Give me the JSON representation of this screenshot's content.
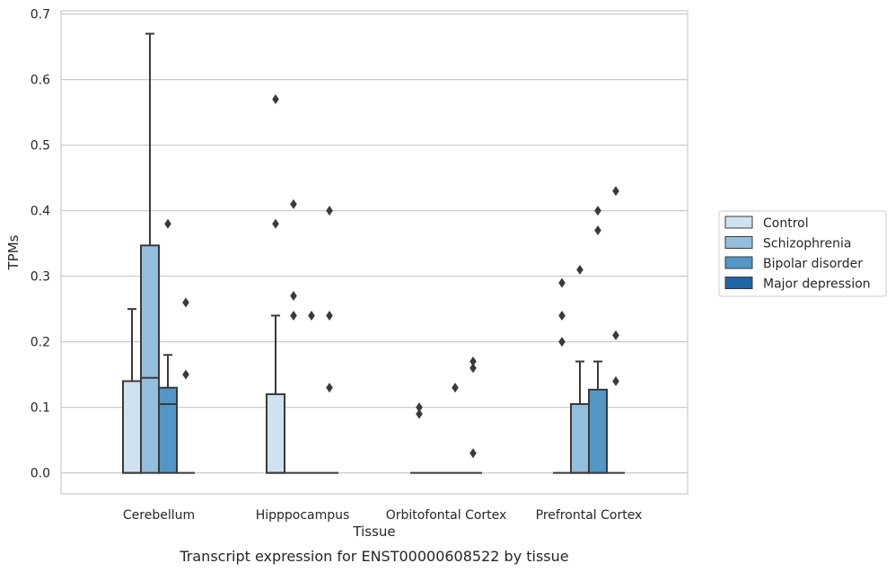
{
  "chart_data": {
    "type": "box",
    "title": "Transcript expression for ENST00000608522 by tissue",
    "xlabel": "Tissue",
    "ylabel": "TPMs",
    "ylim": [
      -0.032,
      0.705
    ],
    "yticks": [
      0.0,
      0.1,
      0.2,
      0.3,
      0.4,
      0.5,
      0.6,
      0.7
    ],
    "ytick_labels": [
      "0.0",
      "0.1",
      "0.2",
      "0.3",
      "0.4",
      "0.5",
      "0.6",
      "0.7"
    ],
    "grid": "horizontal",
    "legend_position": "right",
    "categories": [
      "Cerebellum",
      "Hipppocampus",
      "Orbitofontal Cortex",
      "Prefrontal Cortex"
    ],
    "series": [
      {
        "name": "Control",
        "color": "#d0e1f0",
        "boxes": [
          {
            "q1": 0.0,
            "median": 0.0,
            "q3": 0.14,
            "whisker_low": 0.0,
            "whisker_high": 0.25,
            "outliers": []
          },
          {
            "q1": 0.0,
            "median": 0.0,
            "q3": 0.12,
            "whisker_low": 0.0,
            "whisker_high": 0.24,
            "outliers": [
              0.38,
              0.57
            ]
          },
          {
            "q1": 0.0,
            "median": 0.0,
            "q3": 0.0,
            "whisker_low": 0.0,
            "whisker_high": 0.0,
            "outliers": [
              0.09,
              0.1
            ]
          },
          {
            "q1": 0.0,
            "median": 0.0,
            "q3": 0.0,
            "whisker_low": 0.0,
            "whisker_high": 0.0,
            "outliers": [
              0.2,
              0.24,
              0.29
            ]
          }
        ]
      },
      {
        "name": "Schizophrenia",
        "color": "#93bfdc",
        "boxes": [
          {
            "q1": 0.0,
            "median": 0.145,
            "q3": 0.347,
            "whisker_low": 0.0,
            "whisker_high": 0.67,
            "outliers": []
          },
          {
            "q1": 0.0,
            "median": 0.0,
            "q3": 0.0,
            "whisker_low": 0.0,
            "whisker_high": 0.0,
            "outliers": [
              0.24,
              0.27,
              0.41
            ]
          },
          {
            "q1": 0.0,
            "median": 0.0,
            "q3": 0.0,
            "whisker_low": 0.0,
            "whisker_high": 0.0,
            "outliers": []
          },
          {
            "q1": 0.0,
            "median": 0.0,
            "q3": 0.105,
            "whisker_low": 0.0,
            "whisker_high": 0.17,
            "outliers": [
              0.31
            ]
          }
        ]
      },
      {
        "name": "Bipolar disorder",
        "color": "#5297c6",
        "boxes": [
          {
            "q1": 0.0,
            "median": 0.105,
            "q3": 0.13,
            "whisker_low": 0.0,
            "whisker_high": 0.18,
            "outliers": [
              0.38
            ]
          },
          {
            "q1": 0.0,
            "median": 0.0,
            "q3": 0.0,
            "whisker_low": 0.0,
            "whisker_high": 0.0,
            "outliers": [
              0.24
            ]
          },
          {
            "q1": 0.0,
            "median": 0.0,
            "q3": 0.0,
            "whisker_low": 0.0,
            "whisker_high": 0.0,
            "outliers": [
              0.13
            ]
          },
          {
            "q1": 0.0,
            "median": 0.0,
            "q3": 0.127,
            "whisker_low": 0.0,
            "whisker_high": 0.17,
            "outliers": [
              0.37,
              0.4
            ]
          }
        ]
      },
      {
        "name": "Major depression",
        "color": "#1f65a6",
        "boxes": [
          {
            "q1": 0.0,
            "median": 0.0,
            "q3": 0.0,
            "whisker_low": 0.0,
            "whisker_high": 0.0,
            "outliers": [
              0.15,
              0.26
            ]
          },
          {
            "q1": 0.0,
            "median": 0.0,
            "q3": 0.0,
            "whisker_low": 0.0,
            "whisker_high": 0.0,
            "outliers": [
              0.13,
              0.24,
              0.4
            ]
          },
          {
            "q1": 0.0,
            "median": 0.0,
            "q3": 0.0,
            "whisker_low": 0.0,
            "whisker_high": 0.0,
            "outliers": [
              0.03,
              0.16,
              0.17
            ]
          },
          {
            "q1": 0.0,
            "median": 0.0,
            "q3": 0.0,
            "whisker_low": 0.0,
            "whisker_high": 0.0,
            "outliers": [
              0.14,
              0.21,
              0.43
            ]
          }
        ]
      }
    ]
  }
}
